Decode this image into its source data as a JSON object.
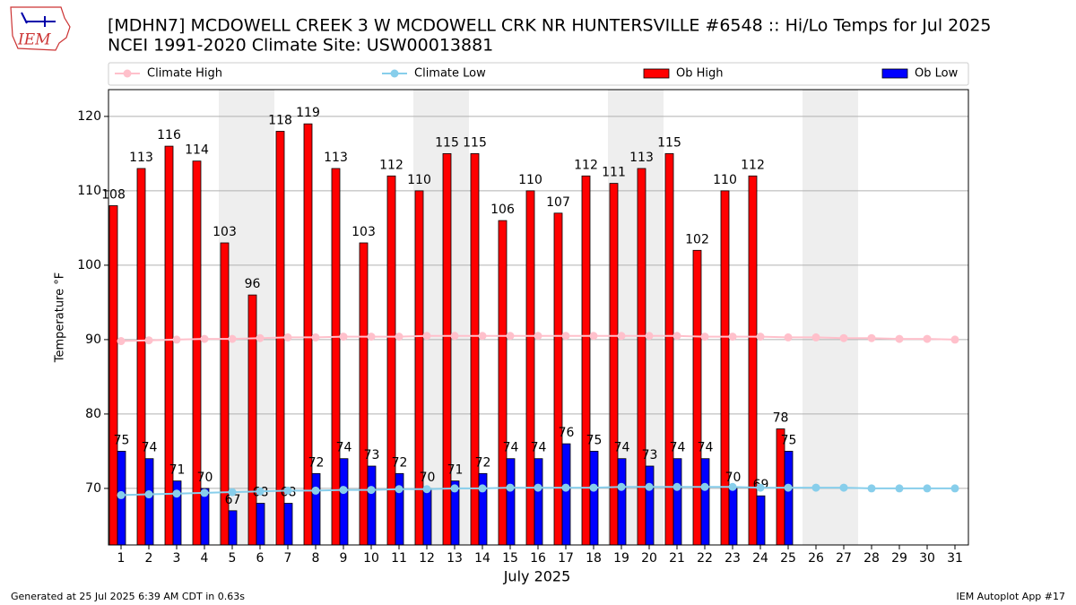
{
  "chart_data": {
    "type": "bar",
    "title": "[MDHN7] MCDOWELL CREEK 3 W MCDOWELL CRK NR HUNTERSVILLE #6548 :: Hi/Lo Temps for Jul 2025",
    "subtitle": "NCEI 1991-2020 Climate Site: USW00013881",
    "xlabel": "July 2025",
    "ylabel": "Temperature °F",
    "categories": [
      "1",
      "2",
      "3",
      "4",
      "5",
      "6",
      "7",
      "8",
      "9",
      "10",
      "11",
      "12",
      "13",
      "14",
      "15",
      "16",
      "17",
      "18",
      "19",
      "20",
      "21",
      "22",
      "23",
      "24",
      "25",
      "26",
      "27",
      "28",
      "29",
      "30",
      "31"
    ],
    "series": [
      {
        "name": "Climate High",
        "type": "line",
        "color": "#ffc0cb",
        "values": [
          89.8,
          89.9,
          90.0,
          90.1,
          90.1,
          90.2,
          90.3,
          90.3,
          90.4,
          90.4,
          90.4,
          90.5,
          90.5,
          90.5,
          90.5,
          90.5,
          90.5,
          90.5,
          90.5,
          90.5,
          90.5,
          90.4,
          90.4,
          90.4,
          90.3,
          90.3,
          90.2,
          90.2,
          90.1,
          90.1,
          90.0
        ]
      },
      {
        "name": "Climate Low",
        "type": "line",
        "color": "#87ceeb",
        "values": [
          69.1,
          69.2,
          69.3,
          69.4,
          69.5,
          69.6,
          69.7,
          69.7,
          69.8,
          69.8,
          69.9,
          69.9,
          70.0,
          70.0,
          70.1,
          70.1,
          70.1,
          70.1,
          70.2,
          70.2,
          70.2,
          70.2,
          70.2,
          70.1,
          70.1,
          70.1,
          70.1,
          70.0,
          70.0,
          70.0,
          70.0
        ]
      },
      {
        "name": "Ob High",
        "type": "bar",
        "color": "#ff0000",
        "values": [
          108,
          113,
          116,
          114,
          103,
          96,
          118,
          119,
          113,
          103,
          112,
          110,
          115,
          115,
          106,
          110,
          107,
          112,
          111,
          113,
          115,
          102,
          110,
          112,
          78,
          null,
          null,
          null,
          null,
          null,
          null
        ]
      },
      {
        "name": "Ob Low",
        "type": "bar",
        "color": "#0000ff",
        "values": [
          75,
          74,
          71,
          70,
          67,
          68,
          68,
          72,
          74,
          73,
          72,
          70,
          71,
          72,
          74,
          74,
          76,
          75,
          74,
          73,
          74,
          74,
          70,
          69,
          75,
          null,
          null,
          null,
          null,
          null,
          null
        ]
      }
    ],
    "ylim": [
      62.4,
      123.6
    ],
    "yticks": [
      70,
      80,
      90,
      100,
      110,
      120
    ],
    "grid": true,
    "legend": "top"
  },
  "footer": {
    "left": "Generated at 25 Jul 2025 6:39 AM CDT in 0.63s",
    "right": "IEM Autoplot App #17"
  },
  "logo": "IEM"
}
